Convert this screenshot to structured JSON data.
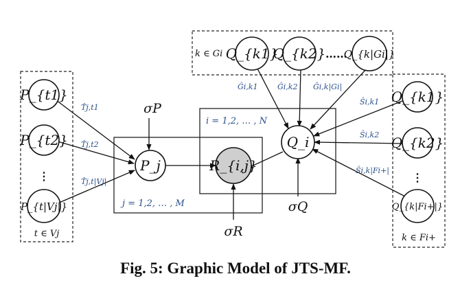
{
  "caption": "Fig. 5: Graphic Model of JTS-MF.",
  "nodes": {
    "P_t1": "P_{t1}",
    "P_t2": "P_{t2}",
    "P_tVj": "P_{t|Vj|}",
    "P_j": "P_j",
    "R_ij": "R_{i,j}",
    "Q_i": "Q_i",
    "Q_k1_top": "Q_{k1}",
    "Q_k2_top": "Q_{k2}",
    "Q_kGi_top": "Q_{k|Gi|}",
    "Q_k1_right": "Q_{k1}",
    "Q_k2_right": "Q_{k2}",
    "Q_kFi_right": "Q_{k|Fi+|}"
  },
  "params": {
    "sigma_P": "σP",
    "sigma_Q": "σQ",
    "sigma_R": "σR"
  },
  "plates": {
    "i_plate": "i = 1,2, … , N",
    "j_plate": "j = 1,2, … , M",
    "left_set": "t ∈ Vj",
    "top_set": "k ∈ Gi",
    "right_set": "k ∈ Fi+"
  },
  "edge_labels": {
    "T_jt1": "T̂j,t1",
    "T_jt2": "T̂j,t2",
    "T_jtVj": "T̂j,t|Vj|",
    "G_ik1": "Ĝi,k1",
    "G_ik2": "Ĝi,k2",
    "G_ikGi": "Ĝi,k|Gi|",
    "S_ik1": "Ŝi,k1",
    "S_ik2": "Ŝi,k2",
    "S_ikFi": "Ŝi,k|Fi+|"
  },
  "ellipses": {
    "left_vertical": "⋮",
    "top_horizontal": "……",
    "right_vertical": "⋮"
  },
  "colors": {
    "observed_node": "#cfcfcf",
    "edge_label_text": "#2a4f8a"
  }
}
